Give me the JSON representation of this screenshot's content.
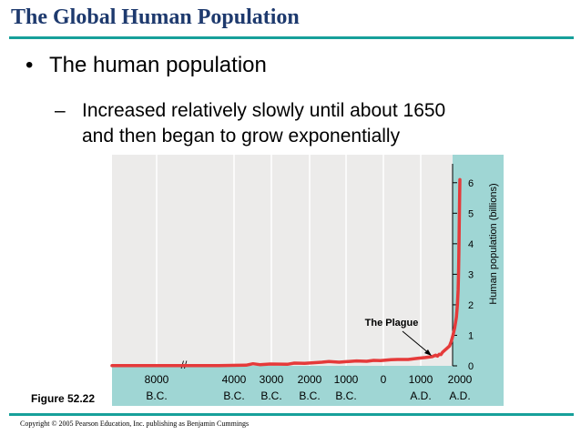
{
  "slide": {
    "title": "The Global Human Population",
    "bullet": "The human population",
    "sub_bullet_line1": "Increased relatively slowly until about 1650",
    "sub_bullet_line2": "and then began to grow exponentially",
    "bullet_marker": "•",
    "sub_bullet_marker": "–",
    "figure_label": "Figure 52.22",
    "copyright": "Copyright © 2005 Pearson Education, Inc. publishing as Benjamin Cummings"
  },
  "colors": {
    "title": "#1e3a6e",
    "rule": "#17a09a",
    "panel": "#9fd6d4",
    "plot_bg": "#ecebea",
    "line": "#e53a3a"
  },
  "chart_data": {
    "type": "line",
    "ylabel": "Human population (billions)",
    "ylim": [
      0,
      6.5
    ],
    "y_ticks": [
      "0",
      "1",
      "2",
      "3",
      "4",
      "5",
      "6"
    ],
    "x_ticks": [
      {
        "top": "8000",
        "bottom": "B.C."
      },
      {
        "top": "4000",
        "bottom": "B.C."
      },
      {
        "top": "3000",
        "bottom": "B.C."
      },
      {
        "top": "2000",
        "bottom": "B.C."
      },
      {
        "top": "1000",
        "bottom": "B.C."
      },
      {
        "top": "0",
        "bottom": ""
      },
      {
        "top": "1000",
        "bottom": "A.D."
      },
      {
        "top": "2000",
        "bottom": "A.D."
      }
    ],
    "axis_break": "//",
    "annotation": "The Plague",
    "series": [
      {
        "x": [
          -9000,
          -8000,
          -7000,
          -6000,
          -5000,
          -4200,
          -4000,
          -3800,
          -3500,
          -3000,
          -2800,
          -2500,
          -2000,
          -1800,
          -1500,
          -1000,
          -700,
          -500,
          -300,
          0,
          200,
          500,
          800,
          1000,
          1200,
          1300,
          1350,
          1400,
          1450,
          1500,
          1600,
          1700,
          1750,
          1800,
          1850,
          1900,
          1930,
          1950,
          1960,
          1970,
          1980,
          1990,
          2000
        ],
        "y": [
          0.005,
          0.005,
          0.006,
          0.008,
          0.01,
          0.02,
          0.07,
          0.04,
          0.06,
          0.05,
          0.09,
          0.08,
          0.12,
          0.14,
          0.12,
          0.16,
          0.15,
          0.18,
          0.17,
          0.2,
          0.21,
          0.21,
          0.25,
          0.27,
          0.3,
          0.35,
          0.32,
          0.38,
          0.37,
          0.45,
          0.55,
          0.65,
          0.8,
          1.0,
          1.25,
          1.6,
          2.0,
          2.5,
          3.0,
          3.7,
          4.4,
          5.3,
          6.1
        ]
      }
    ]
  }
}
